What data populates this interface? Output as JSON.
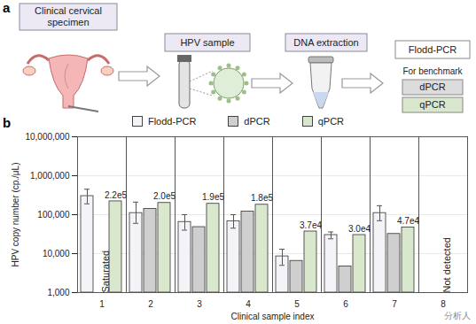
{
  "diagram": {
    "panel_label": "a",
    "steps": [
      {
        "label": "Clinical cervical specimen"
      },
      {
        "label": "HPV sample"
      },
      {
        "label": "DNA extraction"
      }
    ],
    "methods": {
      "main": "Flodd-PCR",
      "benchmark_note": "For benchmark",
      "benchmarks": [
        "dPCR",
        "qPCR"
      ]
    }
  },
  "chart_data": {
    "panel_label": "b",
    "type": "bar",
    "x_label": "Clinical sample index",
    "y_label": "HPV copy number (cp./μL)",
    "categories": [
      "1",
      "2",
      "3",
      "4",
      "5",
      "6",
      "7",
      "8"
    ],
    "series": [
      {
        "name": "Flodd-PCR",
        "color": "#f3f3f8",
        "values": [
          300000,
          110000,
          65000,
          68000,
          8500,
          30000,
          110000,
          null
        ],
        "error_low": [
          190000,
          60000,
          40000,
          45000,
          5000,
          24000,
          70000,
          null
        ],
        "error_high": [
          450000,
          210000,
          100000,
          100000,
          13000,
          36000,
          170000,
          null
        ]
      },
      {
        "name": "dPCR",
        "color": "#cfcfcf",
        "values": [
          null,
          140000,
          48000,
          120000,
          6500,
          4700,
          32000,
          null
        ]
      },
      {
        "name": "qPCR",
        "color": "#d9e8cc",
        "values": [
          220000,
          200000,
          190000,
          180000,
          37000,
          30000,
          47000,
          null
        ],
        "value_labels": [
          "2.2e5",
          "2.0e5",
          "1.9e5",
          "1.8e5",
          "3.7e4",
          "3.0e4",
          "4.7e4",
          null
        ],
        "data_labels": true
      }
    ],
    "log": "y",
    "ylim": [
      1000,
      10000000
    ],
    "yticks": [
      {
        "value": 1000,
        "label": "1,000"
      },
      {
        "value": 10000,
        "label": "10,000"
      },
      {
        "value": 100000,
        "label": "100,000"
      },
      {
        "value": 1000000,
        "label": "1,000,000"
      },
      {
        "value": 10000000,
        "label": "10,000,000"
      }
    ],
    "grid": true,
    "legend": "top",
    "annotations": [
      {
        "text": "Saturated",
        "category": "1",
        "series": "dPCR"
      },
      {
        "text": "Not detected",
        "category": "8",
        "series": "dPCR"
      }
    ]
  },
  "watermark": "分析人"
}
